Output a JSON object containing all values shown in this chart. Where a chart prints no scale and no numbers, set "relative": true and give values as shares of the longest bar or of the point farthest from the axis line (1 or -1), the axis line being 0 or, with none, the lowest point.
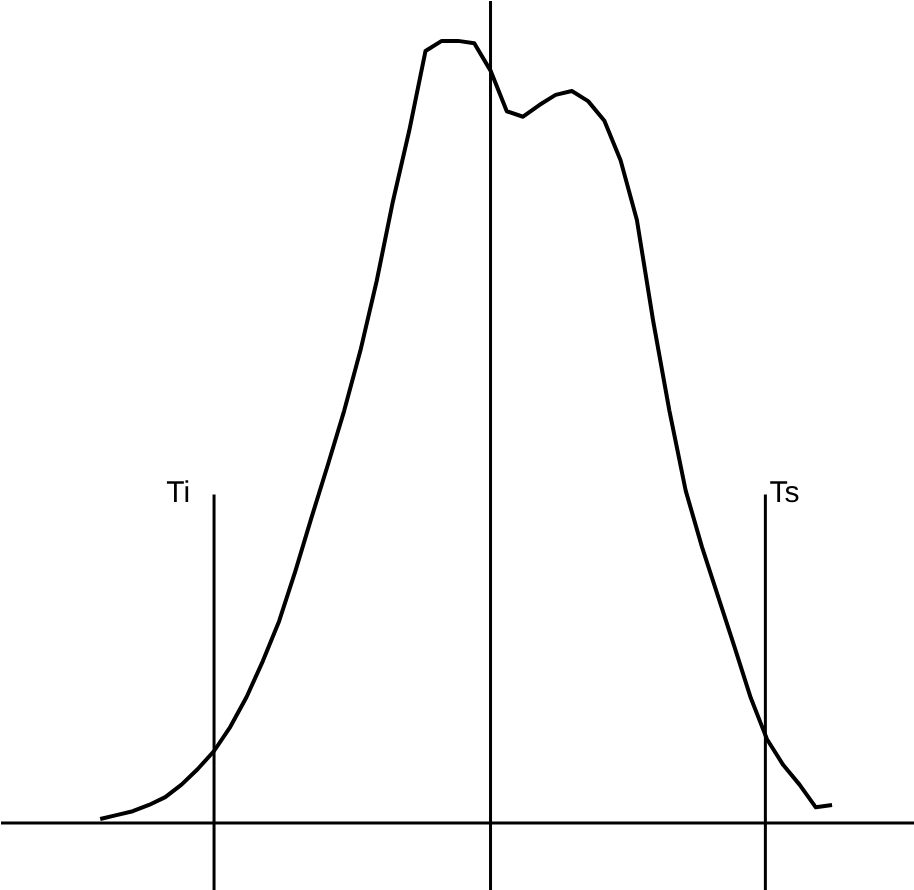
{
  "chart_data": {
    "type": "line",
    "relative": true,
    "categories": [
      null,
      null,
      null,
      null,
      null,
      null,
      null,
      null,
      null,
      null,
      null,
      null,
      null,
      null,
      null,
      null,
      null,
      null,
      null,
      null,
      null,
      null,
      null,
      null,
      null,
      null,
      null,
      null,
      null,
      null,
      null,
      null,
      null,
      null,
      null,
      null,
      null,
      null,
      null,
      null,
      null,
      null,
      null,
      null,
      null,
      null
    ],
    "series": [
      {
        "color": "#000000",
        "values": [
          0.005,
          0.01,
          0.015,
          0.023,
          0.033,
          0.049,
          0.069,
          0.092,
          0.123,
          0.161,
          0.207,
          0.258,
          0.322,
          0.391,
          0.458,
          0.527,
          0.604,
          0.693,
          0.795,
          0.885,
          0.987,
          1.0,
          1.0,
          0.997,
          0.962,
          0.91,
          0.903,
          0.918,
          0.931,
          0.936,
          0.923,
          0.898,
          0.847,
          0.771,
          0.642,
          0.527,
          0.425,
          0.353,
          0.289,
          0.225,
          0.16,
          0.107,
          0.074,
          0.049,
          0.02,
          0.023
        ]
      }
    ],
    "annotations": [
      "Ti",
      "Ts"
    ],
    "line_style": "solid",
    "tick_labels": false
  }
}
